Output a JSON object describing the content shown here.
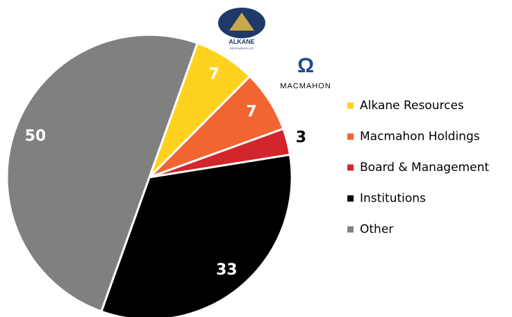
{
  "chart_data": {
    "type": "pie",
    "categories": [
      "Alkane Resources",
      "Macmahon Holdings",
      "Board & Management",
      "Institutions",
      "Other"
    ],
    "values": [
      7,
      7,
      3,
      33,
      50
    ],
    "colors": [
      "#ffd21f",
      "#f26531",
      "#d0262c",
      "#000000",
      "#808080"
    ],
    "legend": "right"
  },
  "logos": {
    "alkane": "ALKANE",
    "alkane_sub": "RESOURCES LTD",
    "macmahon": "MACMAHON"
  }
}
